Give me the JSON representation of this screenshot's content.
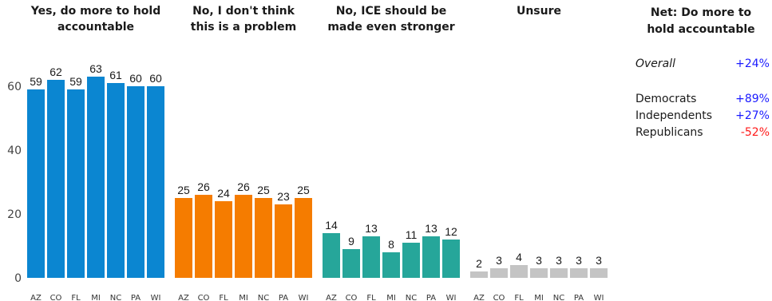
{
  "chart_data": {
    "type": "bar",
    "categories": [
      "AZ",
      "CO",
      "FL",
      "MI",
      "NC",
      "PA",
      "WI"
    ],
    "yticks": [
      0,
      20,
      40,
      60
    ],
    "ylim": [
      0,
      70
    ],
    "panels": [
      {
        "title_lines": [
          "Yes, do more to hold",
          "accountable"
        ],
        "color": "#0b86d1",
        "values": [
          59,
          62,
          59,
          63,
          61,
          60,
          60
        ]
      },
      {
        "title_lines": [
          "No, I don't think",
          "this is a problem"
        ],
        "color": "#f57c00",
        "values": [
          25,
          26,
          24,
          26,
          25,
          23,
          25
        ]
      },
      {
        "title_lines": [
          "No, ICE should be",
          "made even stronger"
        ],
        "color": "#26a69a",
        "values": [
          14,
          9,
          13,
          8,
          11,
          13,
          12
        ]
      },
      {
        "title_lines": [
          "Unsure"
        ],
        "color": "#c4c4c4",
        "values": [
          2,
          3,
          4,
          3,
          3,
          3,
          3
        ]
      }
    ]
  },
  "net": {
    "title_line1": "Net: Do more to",
    "title_line2": "hold accountable",
    "overall": {
      "label": "Overall",
      "value": "+24%",
      "color": "#1a1aff"
    },
    "groups": [
      {
        "label": "Democrats",
        "value": "+89%",
        "color": "#1a1aff"
      },
      {
        "label": "Independents",
        "value": "+27%",
        "color": "#1a1aff"
      },
      {
        "label": "Republicans",
        "value": "-52%",
        "color": "#ff1a1a"
      }
    ]
  }
}
